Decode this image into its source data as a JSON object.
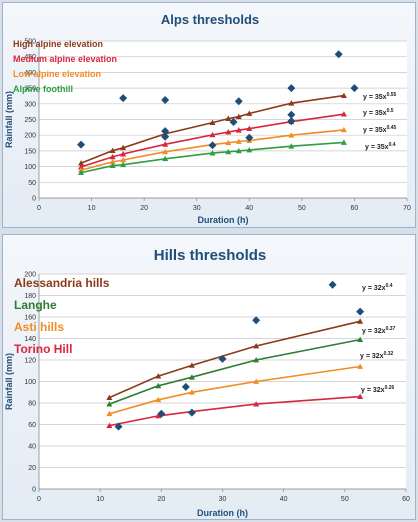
{
  "colors": {
    "title": "#1f4e79",
    "axis_label": "#1f4e79",
    "diamond": "#1f4e79",
    "grid": "#c8c8c8"
  },
  "chart_data": [
    {
      "type": "scatter",
      "title": "Alps thresholds",
      "xlabel": "Duration (h)",
      "ylabel": "Rainfall (mm)",
      "xlim": [
        0,
        70
      ],
      "ylim": [
        0,
        500
      ],
      "xticks": [
        0,
        10,
        20,
        30,
        40,
        50,
        60,
        70
      ],
      "yticks": [
        0,
        50,
        100,
        150,
        200,
        250,
        300,
        350,
        400,
        450,
        500
      ],
      "grid": "horizontal",
      "legend_placement": "top-left",
      "observations": [
        {
          "x": 8,
          "y": 170
        },
        {
          "x": 16,
          "y": 318
        },
        {
          "x": 24,
          "y": 312
        },
        {
          "x": 24,
          "y": 213
        },
        {
          "x": 24,
          "y": 195
        },
        {
          "x": 33,
          "y": 168
        },
        {
          "x": 37,
          "y": 242
        },
        {
          "x": 38,
          "y": 308
        },
        {
          "x": 40,
          "y": 192
        },
        {
          "x": 48,
          "y": 350
        },
        {
          "x": 48,
          "y": 265
        },
        {
          "x": 48,
          "y": 245
        },
        {
          "x": 57,
          "y": 458
        },
        {
          "x": 60,
          "y": 350
        }
      ],
      "series": [
        {
          "name": "High alpine elevation",
          "color": "#8b3a1a",
          "equation": "y = 35x",
          "exponent": "0.55",
          "points": [
            [
              8,
              111
            ],
            [
              14,
              151
            ],
            [
              16,
              160
            ],
            [
              24,
              204
            ],
            [
              33,
              240
            ],
            [
              36,
              253
            ],
            [
              38,
              259
            ],
            [
              40,
              269
            ],
            [
              48,
              302
            ],
            [
              58,
              326
            ]
          ]
        },
        {
          "name": "Medium alpine elevation",
          "color": "#d7263d",
          "equation": "y = 35x",
          "exponent": "0.5",
          "points": [
            [
              8,
              99
            ],
            [
              14,
              131
            ],
            [
              16,
              140
            ],
            [
              24,
              171
            ],
            [
              33,
              201
            ],
            [
              36,
              210
            ],
            [
              38,
              216
            ],
            [
              40,
              221
            ],
            [
              48,
              243
            ],
            [
              58,
              267
            ]
          ]
        },
        {
          "name": "Low alpine elevation",
          "color": "#f28c28",
          "equation": "y = 35x",
          "exponent": "0.45",
          "points": [
            [
              8,
              89
            ],
            [
              14,
              115
            ],
            [
              16,
              121
            ],
            [
              24,
              147
            ],
            [
              33,
              170
            ],
            [
              36,
              176
            ],
            [
              38,
              180
            ],
            [
              40,
              183
            ],
            [
              48,
              200
            ],
            [
              58,
              217
            ]
          ]
        },
        {
          "name": "Alpine foothill",
          "color": "#2e9e44",
          "equation": "y = 35x",
          "exponent": "0.4",
          "points": [
            [
              8,
              81
            ],
            [
              14,
              103
            ],
            [
              16,
              106
            ],
            [
              24,
              125
            ],
            [
              33,
              143
            ],
            [
              36,
              147
            ],
            [
              38,
              150
            ],
            [
              40,
              153
            ],
            [
              48,
              165
            ],
            [
              58,
              177
            ]
          ]
        }
      ]
    },
    {
      "type": "scatter",
      "title": "Hills thresholds",
      "xlabel": "Duration (h)",
      "ylabel": "Rainfall (mm)",
      "xlim": [
        0,
        60
      ],
      "ylim": [
        0,
        200
      ],
      "xticks": [
        0,
        10,
        20,
        30,
        40,
        50,
        60
      ],
      "yticks": [
        0,
        20,
        40,
        60,
        80,
        100,
        120,
        140,
        160,
        180,
        200
      ],
      "grid": "horizontal",
      "legend_placement": "top-left",
      "observations": [
        {
          "x": 13,
          "y": 58
        },
        {
          "x": 20,
          "y": 70
        },
        {
          "x": 24,
          "y": 95
        },
        {
          "x": 25,
          "y": 71
        },
        {
          "x": 30,
          "y": 121
        },
        {
          "x": 35.5,
          "y": 157
        },
        {
          "x": 48,
          "y": 190
        },
        {
          "x": 52.5,
          "y": 165
        }
      ],
      "series": [
        {
          "name": "Alessandria hills",
          "color": "#8b3a1a",
          "equation": "y = 32x",
          "exponent": "0.4",
          "points": [
            [
              11.5,
              85
            ],
            [
              19.5,
              105
            ],
            [
              25,
              115
            ],
            [
              35.5,
              133
            ],
            [
              52.5,
              156
            ]
          ]
        },
        {
          "name": "Langhe",
          "color": "#2e7d32",
          "equation": "y = 32x",
          "exponent": "0.37",
          "points": [
            [
              11.5,
              79
            ],
            [
              19.5,
              96
            ],
            [
              25,
              104
            ],
            [
              35.5,
              120
            ],
            [
              52.5,
              139
            ]
          ]
        },
        {
          "name": "Asti hills",
          "color": "#f28c28",
          "equation": "y = 32x",
          "exponent": "0.32",
          "points": [
            [
              11.5,
              70
            ],
            [
              19.5,
              83
            ],
            [
              25,
              90
            ],
            [
              35.5,
              100
            ],
            [
              52.5,
              114
            ]
          ]
        },
        {
          "name": "Torino Hill",
          "color": "#d7263d",
          "equation": "y = 32x",
          "exponent": "0.26",
          "points": [
            [
              11.5,
              59
            ],
            [
              19.5,
              68
            ],
            [
              25,
              72
            ],
            [
              35.5,
              79
            ],
            [
              52.5,
              86
            ]
          ]
        }
      ]
    }
  ]
}
